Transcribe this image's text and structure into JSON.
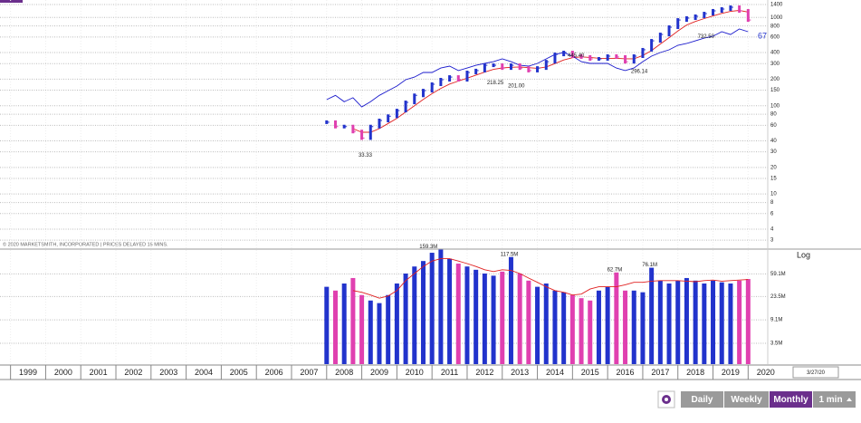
{
  "chart_data": [
    {
      "type": "price",
      "log_scale": true,
      "grid": true,
      "xlim": [
        1998.7,
        2021.1
      ],
      "xticks": [
        1999,
        2000,
        2001,
        2002,
        2003,
        2004,
        2005,
        2006,
        2007,
        2008,
        2009,
        2010,
        2011,
        2012,
        2013,
        2014,
        2015,
        2016,
        2017,
        2018,
        2019,
        2020
      ],
      "ylim": [
        2.55,
        1575
      ],
      "yticks": [
        1400,
        1000,
        800,
        600,
        400,
        300,
        200,
        150,
        100,
        80,
        60,
        40,
        30,
        20,
        15,
        10,
        8,
        6,
        4,
        3
      ],
      "x": [
        2008,
        2008.25,
        2008.5,
        2008.75,
        2009,
        2009.25,
        2009.5,
        2009.75,
        2010,
        2010.25,
        2010.5,
        2010.75,
        2011,
        2011.25,
        2011.5,
        2011.75,
        2012,
        2012.25,
        2012.5,
        2012.75,
        2013,
        2013.25,
        2013.5,
        2013.75,
        2014,
        2014.25,
        2014.5,
        2014.75,
        2015,
        2015.25,
        2015.5,
        2015.75,
        2016,
        2016.25,
        2016.5,
        2016.75,
        2017,
        2017.25,
        2017.5,
        2017.75,
        2018,
        2018.25,
        2018.5,
        2018.75,
        2019,
        2019.25,
        2019.5,
        2019.75,
        2020
      ],
      "up_color": "#2233cc",
      "down_color": "#e040b0",
      "values": [
        65,
        58,
        58,
        51,
        43,
        58,
        68,
        76,
        88,
        109,
        131,
        148,
        175,
        197,
        211,
        197,
        238,
        250,
        287,
        287,
        267,
        287,
        267,
        250,
        267,
        315,
        381,
        400,
        364,
        356,
        339,
        339,
        364,
        356,
        315,
        364,
        430,
        543,
        641,
        775,
        935,
        982,
        1030,
        1104,
        1186,
        1244,
        1303,
        1186,
        935
      ],
      "series": [
        {
          "color": "#e02020",
          "values": [
            null,
            null,
            null,
            55,
            50,
            50,
            55,
            63,
            72,
            85,
            100,
            118,
            137,
            157,
            176,
            190,
            205,
            222,
            240,
            258,
            268,
            272,
            275,
            270,
            265,
            275,
            300,
            330,
            350,
            357,
            352,
            345,
            342,
            345,
            340,
            340,
            370,
            420,
            500,
            590,
            700,
            820,
            900,
            970,
            1040,
            1110,
            1170,
            1200,
            1150
          ]
        },
        {
          "color": "#1a1acc",
          "values": [
            117,
            131,
            111,
            123,
            97,
            111,
            131,
            148,
            167,
            197,
            211,
            238,
            238,
            267,
            281,
            250,
            267,
            287,
            301,
            315,
            339,
            315,
            287,
            281,
            301,
            339,
            381,
            400,
            364,
            315,
            301,
            301,
            301,
            267,
            250,
            267,
            315,
            364,
            400,
            430,
            483,
            507,
            543,
            583,
            612,
            689,
            641,
            740,
            689
          ]
        }
      ],
      "annotations": [
        {
          "x": 2009.1,
          "value": 33.33,
          "label": "33.33"
        },
        {
          "x": 2012.8,
          "value": 218.25,
          "label": "218.25"
        },
        {
          "x": 2013.4,
          "value": 201,
          "label": "201.00"
        },
        {
          "x": 2015.1,
          "value": 445.4,
          "label": "445.40"
        },
        {
          "x": 2016.9,
          "value": 296.14,
          "label": "296.14"
        },
        {
          "x": 2018.8,
          "value": 732.5,
          "label": "732.50"
        }
      ],
      "rs_rating": 67,
      "date_label": "3/27/20",
      "copyright": "© 2020 MARKETSMITH, INCORPORATED | PRICES DELAYED 15 MINS."
    },
    {
      "type": "bar",
      "log_scale": true,
      "scale_label": "Log",
      "xlim": [
        1998.7,
        2021.1
      ],
      "ylim": [
        1.5,
        175
      ],
      "yticks": [
        {
          "value": 59.1,
          "label": "59.1M"
        },
        {
          "value": 23.5,
          "label": "23.5M"
        },
        {
          "value": 9.1,
          "label": "9.1M"
        },
        {
          "value": 3.5,
          "label": "3.5M"
        }
      ],
      "x": [
        2008,
        2008.25,
        2008.5,
        2008.75,
        2009,
        2009.25,
        2009.5,
        2009.75,
        2010,
        2010.25,
        2010.5,
        2010.75,
        2011,
        2011.25,
        2011.5,
        2011.75,
        2012,
        2012.25,
        2012.5,
        2012.75,
        2013,
        2013.25,
        2013.5,
        2013.75,
        2014,
        2014.25,
        2014.5,
        2014.75,
        2015,
        2015.25,
        2015.5,
        2015.75,
        2016,
        2016.25,
        2016.5,
        2016.75,
        2017,
        2017.25,
        2017.5,
        2017.75,
        2018,
        2018.25,
        2018.5,
        2018.75,
        2019,
        2019.25,
        2019.5,
        2019.75,
        2020
      ],
      "values": [
        35,
        30,
        40,
        50,
        25,
        20,
        18,
        25,
        40,
        60,
        80,
        100,
        140,
        159.3,
        110,
        90,
        80,
        70,
        60,
        55,
        65,
        117.5,
        60,
        45,
        35,
        40,
        30,
        28,
        25,
        22,
        20,
        30,
        35,
        62.7,
        30,
        30,
        28,
        76.1,
        45,
        40,
        45,
        50,
        45,
        40,
        45,
        42,
        40,
        45,
        48
      ],
      "ma": {
        "color": "#e02020",
        "values": [
          null,
          null,
          null,
          30,
          28,
          25,
          22,
          24,
          30,
          45,
          60,
          80,
          100,
          110,
          110,
          100,
          90,
          80,
          70,
          65,
          70,
          68,
          60,
          50,
          42,
          35,
          30,
          28,
          25,
          26,
          32,
          35,
          35,
          35,
          38,
          42,
          42,
          44,
          45,
          45,
          45,
          44,
          43,
          45,
          46,
          44,
          45,
          46,
          47
        ]
      },
      "annotations": [
        {
          "x": 2010.9,
          "value": 159.3,
          "label": "159.3M"
        },
        {
          "x": 2013.2,
          "value": 117.5,
          "label": "117.5M"
        },
        {
          "x": 2016.2,
          "value": 62.7,
          "label": "62.7M"
        },
        {
          "x": 2017.2,
          "value": 76.1,
          "label": "76.1M"
        }
      ]
    }
  ],
  "toolbar": {
    "buttons": [
      "Daily",
      "Weekly",
      "Monthly",
      "1 min"
    ],
    "active": 2
  }
}
